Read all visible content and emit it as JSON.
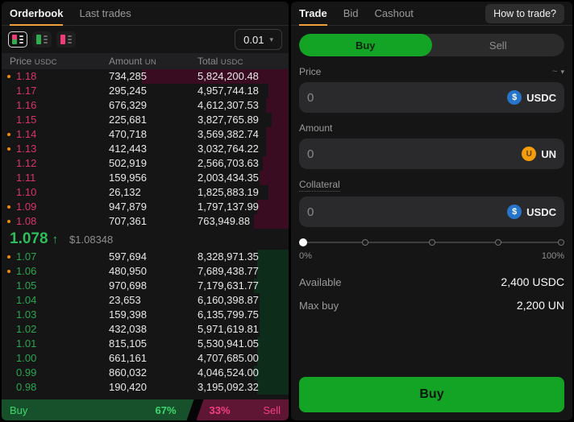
{
  "icons": {
    "chevron_down": "▾",
    "arrow_up": "↑",
    "usdc_symbol": "$",
    "un_symbol": "U"
  },
  "orderbook": {
    "tabs": [
      {
        "label": "Orderbook",
        "active": true
      },
      {
        "label": "Last trades",
        "active": false
      }
    ],
    "tick_size": "0.01",
    "columns": [
      {
        "label": "Price",
        "unit": "USDC"
      },
      {
        "label": "Amount",
        "unit": "UN"
      },
      {
        "label": "Total",
        "unit": "USDC"
      }
    ],
    "asks": [
      {
        "price": "1.18",
        "amount": "734,285",
        "total": "5,824,200.48",
        "dot": true,
        "depth": 51
      },
      {
        "price": "1.17",
        "amount": "295,245",
        "total": "4,957,744.18",
        "dot": false,
        "depth": 7
      },
      {
        "price": "1.16",
        "amount": "676,329",
        "total": "4,612,307.53",
        "dot": false,
        "depth": 8
      },
      {
        "price": "1.15",
        "amount": "225,681",
        "total": "3,827,765.89",
        "dot": false,
        "depth": 6
      },
      {
        "price": "1.14",
        "amount": "470,718",
        "total": "3,569,382.74",
        "dot": true,
        "depth": 8
      },
      {
        "price": "1.13",
        "amount": "412,443",
        "total": "3,032,764.22",
        "dot": true,
        "depth": 8
      },
      {
        "price": "1.12",
        "amount": "502,919",
        "total": "2,566,703.63",
        "dot": false,
        "depth": 9
      },
      {
        "price": "1.11",
        "amount": "159,956",
        "total": "2,003,434.35",
        "dot": false,
        "depth": 10
      },
      {
        "price": "1.10",
        "amount": "26,132",
        "total": "1,825,883.19",
        "dot": false,
        "depth": 7
      },
      {
        "price": "1.09",
        "amount": "947,879",
        "total": "1,797,137.99",
        "dot": true,
        "depth": 11
      },
      {
        "price": "1.08",
        "amount": "707,361",
        "total": "763,949.88",
        "dot": true,
        "depth": 12
      }
    ],
    "mid": {
      "price": "1.078",
      "direction": "up",
      "usd": "$1.08348"
    },
    "bids": [
      {
        "price": "1.07",
        "amount": "597,694",
        "total": "8,328,971.35",
        "dot": true,
        "depth": 11
      },
      {
        "price": "1.06",
        "amount": "480,950",
        "total": "7,689,438.77",
        "dot": true,
        "depth": 11
      },
      {
        "price": "1.05",
        "amount": "970,698",
        "total": "7,179,631.77",
        "dot": false,
        "depth": 12
      },
      {
        "price": "1.04",
        "amount": "23,653",
        "total": "6,160,398.87",
        "dot": false,
        "depth": 10
      },
      {
        "price": "1.03",
        "amount": "159,398",
        "total": "6,135,799.75",
        "dot": false,
        "depth": 10
      },
      {
        "price": "1.02",
        "amount": "432,038",
        "total": "5,971,619.81",
        "dot": false,
        "depth": 10
      },
      {
        "price": "1.01",
        "amount": "815,105",
        "total": "5,530,941.05",
        "dot": false,
        "depth": 11
      },
      {
        "price": "1.00",
        "amount": "661,161",
        "total": "4,707,685.00",
        "dot": false,
        "depth": 11
      },
      {
        "price": "0.99",
        "amount": "860,032",
        "total": "4,046,524.00",
        "dot": false,
        "depth": 12
      },
      {
        "price": "0.98",
        "amount": "190,420",
        "total": "3,195,092.32",
        "dot": false,
        "depth": 11
      }
    ],
    "ratio": {
      "buy_label": "Buy",
      "buy_pct": "67%",
      "buy_value": 67,
      "sell_pct": "33%",
      "sell_label": "Sell",
      "sell_value": 33
    }
  },
  "trade_panel": {
    "tabs": [
      {
        "label": "Trade",
        "active": true
      },
      {
        "label": "Bid",
        "active": false
      },
      {
        "label": "Cashout",
        "active": false
      }
    ],
    "help_button": "How to trade?",
    "side_toggle": {
      "buy": "Buy",
      "sell": "Sell",
      "selected": "Buy"
    },
    "fields": {
      "price": {
        "label": "Price",
        "value": "0",
        "unit": "USDC",
        "approx": "~"
      },
      "amount": {
        "label": "Amount",
        "value": "0",
        "unit": "UN"
      },
      "collateral": {
        "label": "Collateral",
        "value": "0",
        "unit": "USDC"
      }
    },
    "slider": {
      "min_label": "0%",
      "max_label": "100%",
      "value_pct": 0
    },
    "summary": [
      {
        "label": "Available",
        "value": "2,400 USDC"
      },
      {
        "label": "Max buy",
        "value": "2,200 UN"
      }
    ],
    "submit_label": "Buy"
  }
}
